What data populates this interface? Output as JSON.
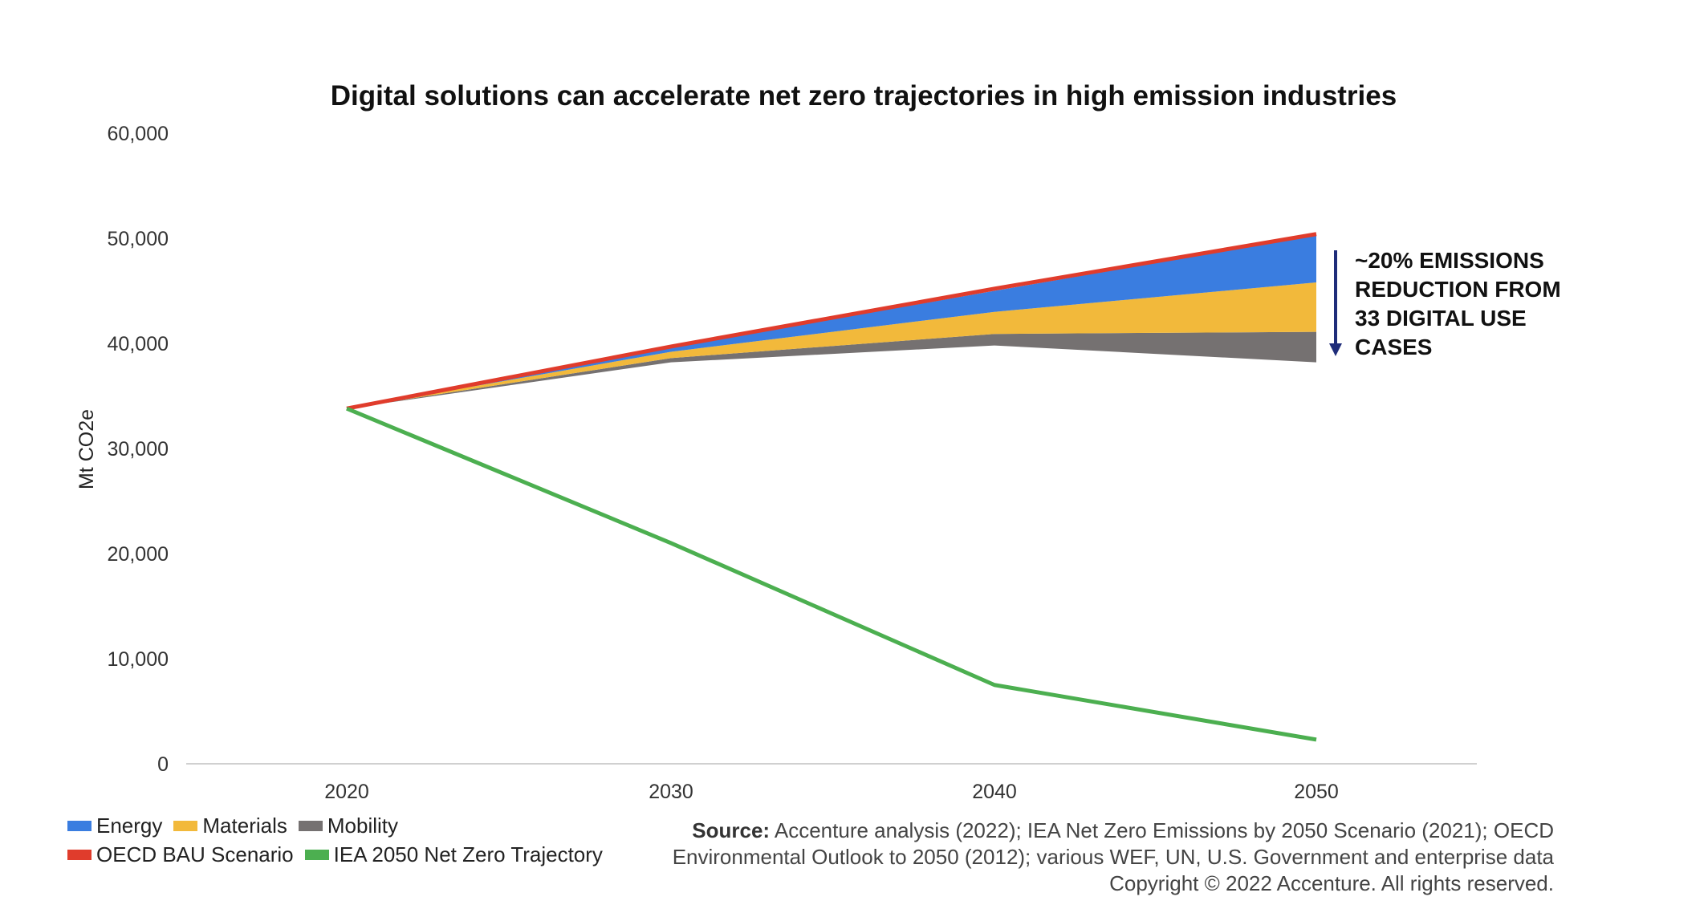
{
  "chart_data": {
    "type": "area",
    "title": "Digital solutions can accelerate net zero trajectories in high emission industries",
    "xlabel": "",
    "ylabel": "Mt CO2e",
    "ylim": [
      0,
      60000
    ],
    "yticks": [
      0,
      10000,
      20000,
      30000,
      40000,
      50000,
      60000
    ],
    "ytick_labels": [
      "0",
      "10,000",
      "20,000",
      "30,000",
      "40,000",
      "50,000",
      "60,000"
    ],
    "x": [
      "2020",
      "2030",
      "2040",
      "2050"
    ],
    "base_line": [
      33800,
      38200,
      39800,
      38200
    ],
    "series": [
      {
        "name": "Mobility",
        "kind": "stacked_area",
        "color": "#757171",
        "values": [
          0,
          400,
          1100,
          2900
        ]
      },
      {
        "name": "Materials",
        "kind": "stacked_area",
        "color": "#F2B93B",
        "values": [
          0,
          600,
          2100,
          4700
        ]
      },
      {
        "name": "Energy",
        "kind": "stacked_area",
        "color": "#3A7DE0",
        "values": [
          0,
          400,
          2000,
          4500
        ]
      },
      {
        "name": "OECD BAU  Scenario",
        "kind": "line",
        "color": "#E03C2C",
        "values": [
          33800,
          39700,
          45200,
          50400
        ]
      },
      {
        "name": "IEA 2050 Net Zero Trajectory",
        "kind": "line",
        "color": "#4CAF50",
        "values": [
          33800,
          21000,
          7500,
          2300
        ]
      }
    ],
    "legend_rows": [
      [
        "Energy",
        "Materials",
        "Mobility"
      ],
      [
        "OECD BAU  Scenario",
        "IEA 2050 Net Zero Trajectory"
      ]
    ],
    "legend_position": "bottom-left",
    "grid": false,
    "annotation": {
      "lines": [
        "~20% EMISSIONS",
        "REDUCTION FROM",
        "33 DIGITAL USE",
        "CASES"
      ],
      "arrow_color": "#1F2D7A"
    }
  },
  "source": {
    "label": "Source:",
    "line1": "Accenture analysis (2022); IEA Net Zero Emissions by 2050 Scenario (2021); OECD",
    "line2": "Environmental Outlook to 2050 (2012); various WEF, UN, U.S. Government and enterprise data",
    "line3": "Copyright © 2022 Accenture. All rights reserved."
  }
}
